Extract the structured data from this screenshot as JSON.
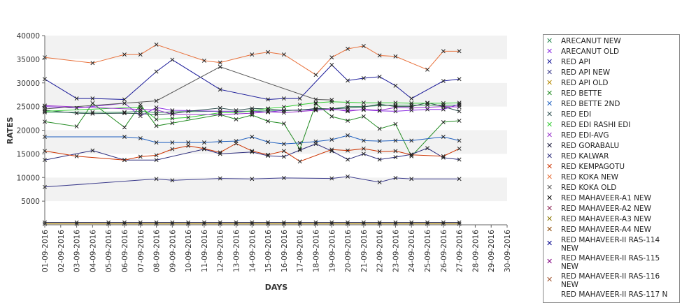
{
  "chart_data": {
    "type": "line",
    "xlabel": "DAYS",
    "ylabel": "RATES",
    "ylim": [
      0,
      40000
    ],
    "yticks": [
      5000,
      10000,
      15000,
      20000,
      25000,
      30000,
      35000,
      40000
    ],
    "grid": "alternating horizontal bands",
    "legend_position": "right",
    "categories": [
      "01-09-2016",
      "02-09-2016",
      "03-09-2016",
      "04-09-2016",
      "05-09-2016",
      "06-09-2016",
      "07-09-2016",
      "08-09-2016",
      "09-09-2016",
      "10-09-2016",
      "11-09-2016",
      "12-09-2016",
      "13-09-2016",
      "14-09-2016",
      "15-09-2016",
      "16-09-2016",
      "17-09-2016",
      "18-09-2016",
      "19-09-2016",
      "20-09-2016",
      "21-09-2016",
      "22-09-2016",
      "23-09-2016",
      "24-09-2016",
      "25-09-2016",
      "26-09-2016",
      "27-09-2016",
      "28-09-2016",
      "29-09-2016",
      "30-09-2016"
    ],
    "series": [
      {
        "name": "ARECANUT NEW",
        "color": "#2e8b57",
        "values": [
          23800,
          null,
          null,
          23800,
          null,
          23800,
          24000,
          23700,
          23900,
          null,
          null,
          24000,
          null,
          24000,
          24100,
          24100,
          null,
          24500,
          24500,
          25000,
          25000,
          25200,
          25300,
          25300,
          25300,
          25300,
          25300,
          null,
          null,
          null
        ]
      },
      {
        "name": "ARECANUT OLD",
        "color": "#8a2be2",
        "values": [
          25000,
          null,
          24700,
          null,
          null,
          25700,
          23000,
          24800,
          24200,
          null,
          null,
          24000,
          null,
          24000,
          23800,
          24200,
          null,
          24300,
          24400,
          24200,
          24300,
          24100,
          24000,
          24200,
          24400,
          24400,
          25500,
          null,
          null,
          null
        ]
      },
      {
        "name": "RED API",
        "color": "#1a1a99",
        "values": [
          30800,
          null,
          26700,
          26700,
          null,
          26500,
          null,
          32400,
          34900,
          null,
          null,
          28600,
          null,
          null,
          26500,
          26700,
          26700,
          null,
          33800,
          30500,
          31000,
          31300,
          29400,
          26700,
          null,
          30400,
          30800,
          null,
          null,
          null
        ]
      },
      {
        "name": "RED API NEW",
        "color": "#3c3c8c",
        "values": [
          8000,
          null,
          null,
          null,
          null,
          null,
          null,
          9700,
          9400,
          null,
          null,
          9800,
          null,
          9700,
          null,
          9900,
          null,
          null,
          9800,
          10200,
          null,
          9000,
          9900,
          9700,
          null,
          null,
          9700,
          null,
          null,
          null
        ]
      },
      {
        "name": "RED API OLD",
        "color": "#b58900",
        "values": [
          200,
          null,
          200,
          null,
          200,
          200,
          200,
          200,
          200,
          200,
          200,
          200,
          200,
          200,
          200,
          200,
          200,
          200,
          200,
          200,
          200,
          200,
          200,
          200,
          200,
          200,
          200,
          null,
          null,
          null
        ]
      },
      {
        "name": "RED BETTE",
        "color": "#228b22",
        "values": [
          21800,
          null,
          20800,
          25700,
          null,
          20600,
          25400,
          20900,
          21500,
          null,
          null,
          23300,
          22300,
          23200,
          21900,
          21400,
          16000,
          25600,
          22900,
          22000,
          22900,
          20300,
          21300,
          14500,
          null,
          21700,
          22000,
          null,
          null,
          null
        ]
      },
      {
        "name": "RED BETTE 2ND",
        "color": "#1f5fbf",
        "values": [
          18600,
          null,
          null,
          null,
          null,
          18600,
          18300,
          17400,
          17400,
          17400,
          17400,
          17600,
          17700,
          18600,
          17500,
          17100,
          17300,
          17600,
          18000,
          18900,
          17800,
          17700,
          17800,
          17800,
          null,
          18600,
          17800,
          null,
          null,
          null
        ]
      },
      {
        "name": "RED EDI",
        "color": "#2f4f4f",
        "values": [
          24200,
          null,
          23600,
          23500,
          null,
          23600,
          23500,
          23300,
          23500,
          24000,
          null,
          24700,
          24200,
          24600,
          24500,
          24200,
          24200,
          24600,
          24500,
          24700,
          24900,
          25500,
          25000,
          25000,
          25800,
          25000,
          24000,
          null,
          null,
          null
        ]
      },
      {
        "name": "RED EDI RASHI EDI",
        "color": "#32cd32",
        "values": [
          24000,
          null,
          null,
          null,
          null,
          null,
          24900,
          22300,
          22500,
          22700,
          null,
          23700,
          23700,
          24100,
          24600,
          24900,
          25400,
          25800,
          26000,
          25900,
          25800,
          25800,
          25800,
          25700,
          25700,
          25700,
          25800,
          null,
          null,
          null
        ]
      },
      {
        "name": "RED EDI-AVG",
        "color": "#9932cc",
        "values": [
          25200,
          null,
          null,
          null,
          null,
          null,
          24400,
          24300,
          23400,
          null,
          null,
          23300,
          null,
          23600,
          23900,
          23700,
          null,
          24200,
          24500,
          24000,
          24400,
          24200,
          24800,
          24700,
          null,
          25000,
          24900,
          null,
          null,
          null
        ]
      },
      {
        "name": "RED GORABALU",
        "color": "#111133",
        "values": [
          500,
          null,
          500,
          null,
          500,
          500,
          500,
          500,
          500,
          500,
          500,
          500,
          500,
          500,
          500,
          500,
          500,
          500,
          500,
          500,
          500,
          500,
          500,
          500,
          500,
          500,
          500,
          null,
          null,
          null
        ]
      },
      {
        "name": "RED KALWAR",
        "color": "#2a2a7a",
        "values": [
          13700,
          null,
          null,
          15700,
          null,
          13700,
          null,
          13700,
          null,
          null,
          16000,
          15000,
          null,
          15400,
          14600,
          14400,
          15800,
          17100,
          15600,
          13800,
          15000,
          13800,
          14300,
          14900,
          16200,
          14200,
          13800,
          null,
          null,
          null
        ]
      },
      {
        "name": "RED KEMPAGOTU",
        "color": "#cc3300",
        "values": [
          15600,
          null,
          14500,
          null,
          null,
          13700,
          14400,
          14700,
          16000,
          16700,
          16100,
          15300,
          17200,
          15600,
          14800,
          15600,
          13400,
          null,
          15900,
          15700,
          16100,
          15500,
          15600,
          14800,
          null,
          14500,
          16100,
          null,
          null,
          null
        ]
      },
      {
        "name": "RED KOKA NEW",
        "color": "#e8703a",
        "values": [
          35400,
          null,
          null,
          34200,
          null,
          36000,
          36000,
          38100,
          null,
          null,
          34700,
          34300,
          null,
          36000,
          36500,
          36000,
          null,
          31700,
          35400,
          37200,
          37800,
          35800,
          35600,
          null,
          32800,
          36700,
          36700,
          null,
          null,
          null
        ]
      },
      {
        "name": "RED KOKA OLD",
        "color": "#555555",
        "values": [
          24500,
          null,
          null,
          null,
          null,
          null,
          null,
          26200,
          null,
          null,
          null,
          33400,
          null,
          null,
          null,
          null,
          null,
          26500,
          26400,
          null,
          null,
          null,
          null,
          null,
          null,
          null,
          null,
          null,
          null,
          null
        ]
      },
      {
        "name": "RED MAHAVEER-A1 NEW",
        "color": "#000000",
        "values": [
          null,
          null,
          null,
          null,
          null,
          null,
          null,
          null,
          null,
          null,
          null,
          null,
          null,
          null,
          null,
          null,
          null,
          null,
          null,
          null,
          null,
          null,
          null,
          null,
          null,
          null,
          null,
          null,
          null,
          null
        ]
      },
      {
        "name": "RED MAHAVEER-A2 NEW",
        "color": "#8b2252",
        "values": [
          null,
          null,
          null,
          null,
          null,
          null,
          null,
          null,
          null,
          null,
          null,
          null,
          null,
          null,
          null,
          null,
          null,
          null,
          null,
          null,
          null,
          null,
          null,
          null,
          null,
          null,
          null,
          null,
          null,
          null
        ]
      },
      {
        "name": "RED MAHAVEER-A3 NEW",
        "color": "#8b7500",
        "values": [
          null,
          null,
          null,
          null,
          null,
          null,
          null,
          null,
          null,
          null,
          null,
          null,
          null,
          null,
          null,
          null,
          null,
          null,
          null,
          null,
          null,
          null,
          null,
          null,
          null,
          null,
          null,
          null,
          null,
          null
        ]
      },
      {
        "name": "RED MAHAVEER-A4 NEW",
        "color": "#8b4500",
        "values": [
          null,
          null,
          null,
          null,
          null,
          null,
          null,
          null,
          null,
          null,
          null,
          null,
          null,
          null,
          null,
          null,
          null,
          null,
          null,
          null,
          null,
          null,
          null,
          null,
          null,
          null,
          null,
          null,
          null,
          null
        ]
      },
      {
        "name": "RED MAHAVEER-II RAS-114 NEW",
        "color": "#00008b",
        "values": [
          null,
          null,
          null,
          null,
          null,
          null,
          null,
          null,
          null,
          null,
          null,
          null,
          null,
          null,
          null,
          null,
          null,
          null,
          null,
          null,
          null,
          null,
          null,
          null,
          null,
          null,
          null,
          null,
          null,
          null
        ]
      },
      {
        "name": "RED MAHAVEER-II RAS-115 NEW",
        "color": "#800080",
        "values": [
          null,
          null,
          null,
          null,
          null,
          null,
          null,
          null,
          null,
          null,
          null,
          null,
          null,
          null,
          null,
          null,
          null,
          null,
          null,
          null,
          null,
          null,
          null,
          null,
          null,
          null,
          null,
          null,
          null,
          null
        ]
      },
      {
        "name": "RED MAHAVEER-II RAS-116 NEW",
        "color": "#a0522d",
        "values": [
          null,
          null,
          null,
          null,
          null,
          null,
          null,
          null,
          null,
          null,
          null,
          null,
          null,
          null,
          null,
          null,
          null,
          null,
          null,
          null,
          null,
          null,
          null,
          null,
          null,
          null,
          null,
          null,
          null,
          null
        ]
      }
    ],
    "legend_overflow_text": "RED MAHAVEER-II RAS-117 N"
  }
}
